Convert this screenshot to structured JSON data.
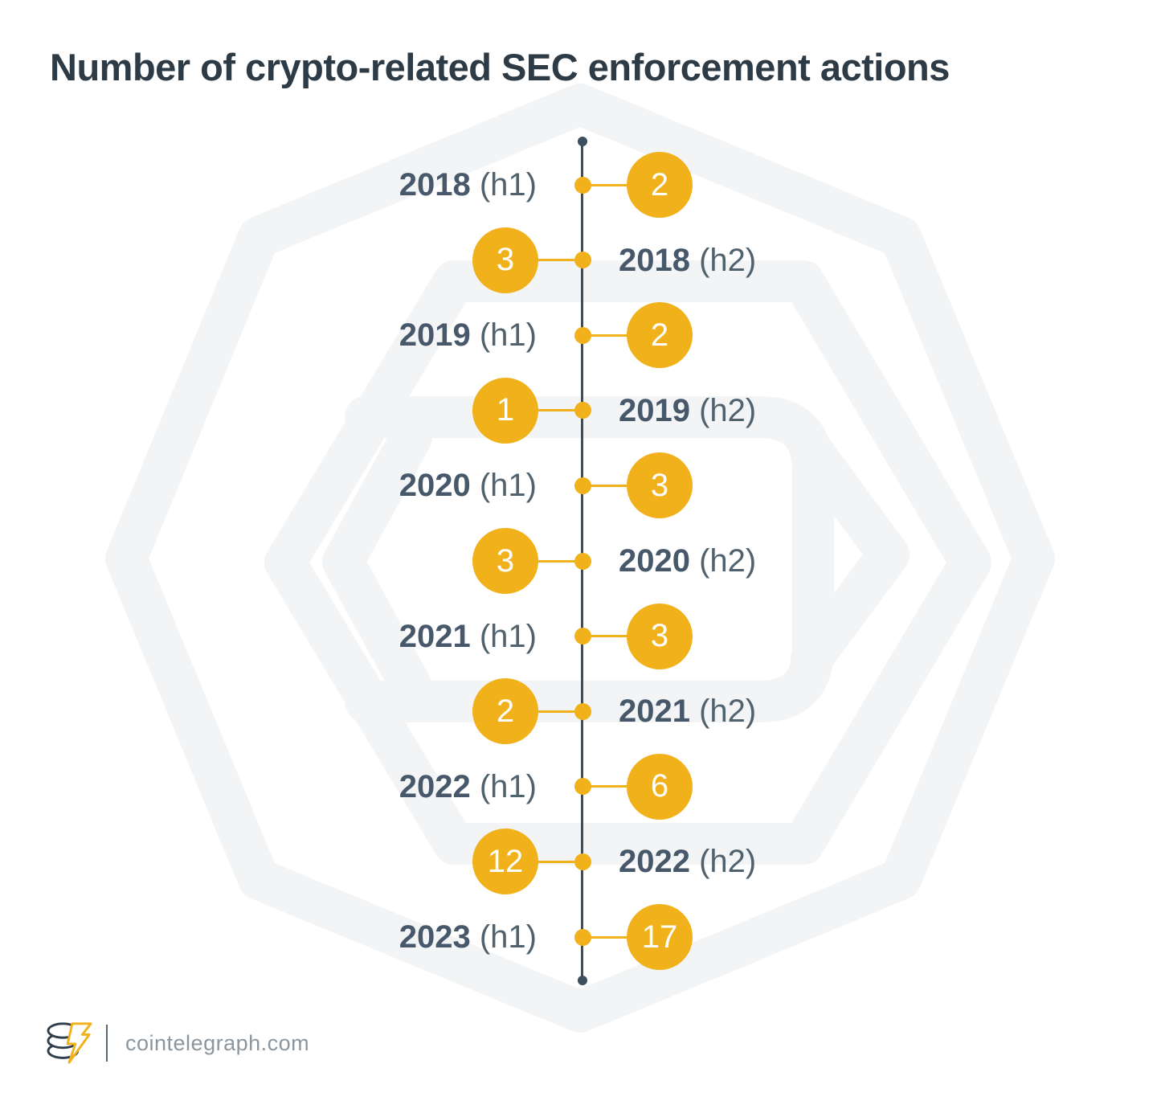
{
  "title": "Number of crypto-related SEC enforcement actions",
  "footer": {
    "site": "cointelegraph.com",
    "logo_icon": "cointelegraph-coin-bolt-logo"
  },
  "colors": {
    "accent_yellow": "#F0B11B",
    "title_text": "#2D3B46",
    "label_text": "#47586A",
    "axis_line": "#3D4E5E",
    "value_text": "#FFFFFF",
    "watermark": "#F2F4F6",
    "footer_text": "#8D969C",
    "background": "#FFFFFF"
  },
  "chart_data": {
    "type": "table",
    "variant": "vertical-alternating-timeline",
    "title": "Number of crypto-related SEC enforcement actions",
    "categories": [
      "2018 (h1)",
      "2018 (h2)",
      "2019 (h1)",
      "2019 (h2)",
      "2020 (h1)",
      "2020 (h2)",
      "2021 (h1)",
      "2021 (h2)",
      "2022 (h1)",
      "2022 (h2)",
      "2023 (h1)"
    ],
    "values": [
      2,
      3,
      2,
      1,
      3,
      3,
      3,
      2,
      6,
      12,
      17
    ],
    "legend": "none",
    "axis": "single vertical timeline, alternating label/value sides",
    "entries": [
      {
        "year": "2018",
        "period": "(h1)",
        "value": "2",
        "side": "right"
      },
      {
        "year": "2018",
        "period": "(h2)",
        "value": "3",
        "side": "left"
      },
      {
        "year": "2019",
        "period": "(h1)",
        "value": "2",
        "side": "right"
      },
      {
        "year": "2019",
        "period": "(h2)",
        "value": "1",
        "side": "left"
      },
      {
        "year": "2020",
        "period": "(h1)",
        "value": "3",
        "side": "right"
      },
      {
        "year": "2020",
        "period": "(h2)",
        "value": "3",
        "side": "left"
      },
      {
        "year": "2021",
        "period": "(h1)",
        "value": "3",
        "side": "right"
      },
      {
        "year": "2021",
        "period": "(h2)",
        "value": "2",
        "side": "left"
      },
      {
        "year": "2022",
        "period": "(h1)",
        "value": "6",
        "side": "right"
      },
      {
        "year": "2022",
        "period": "(h2)",
        "value": "12",
        "side": "left"
      },
      {
        "year": "2023",
        "period": "(h1)",
        "value": "17",
        "side": "right"
      }
    ]
  }
}
